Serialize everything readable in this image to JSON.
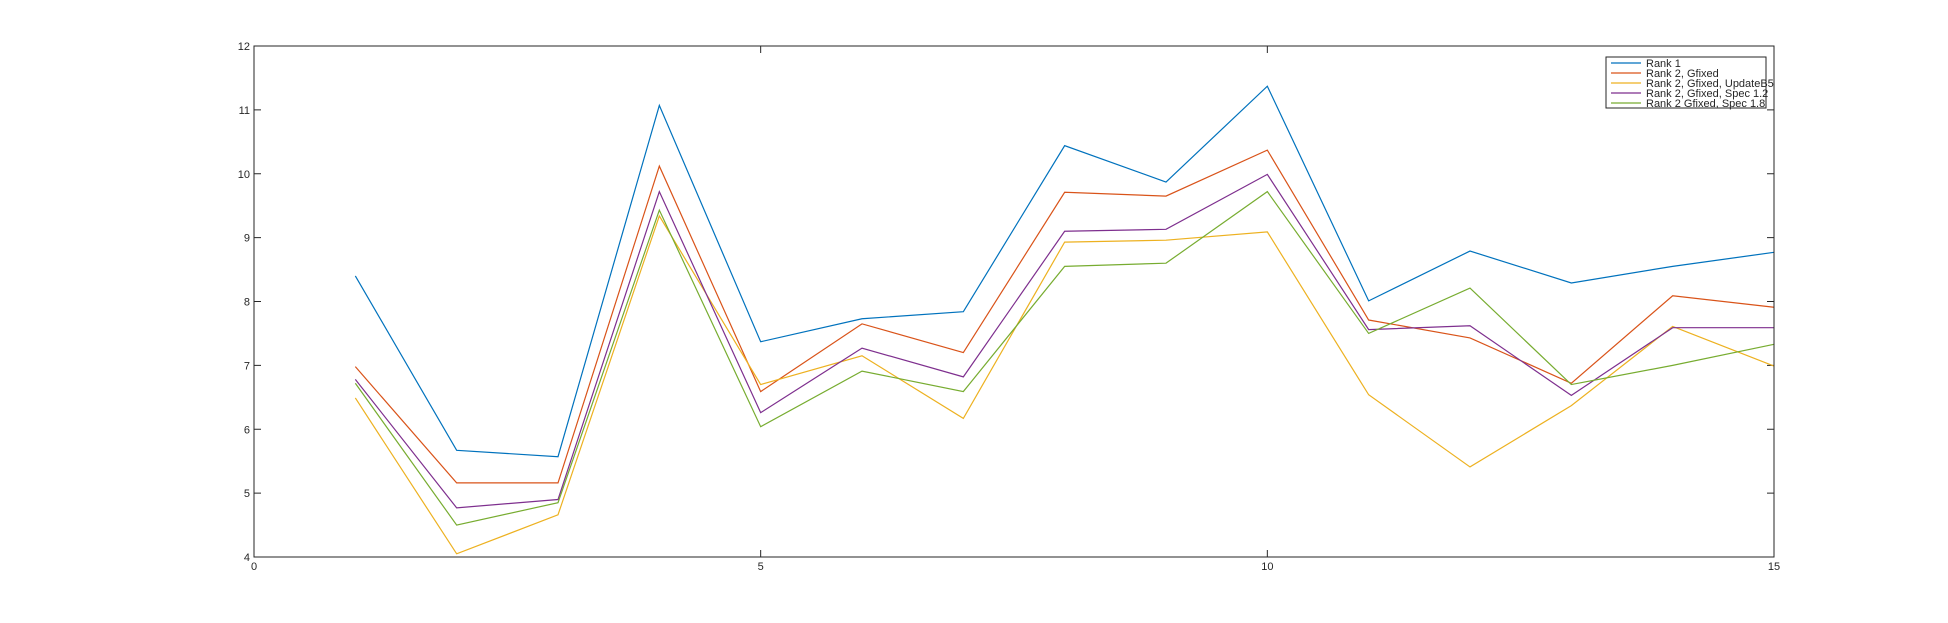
{
  "chart_data": {
    "type": "line",
    "title": "",
    "xlabel": "",
    "ylabel": "",
    "xlim": [
      0,
      15
    ],
    "ylim": [
      4,
      12
    ],
    "xticks": [
      0,
      5,
      10,
      15
    ],
    "yticks": [
      4,
      5,
      6,
      7,
      8,
      9,
      10,
      11,
      12
    ],
    "grid": false,
    "legend_position": "top-right",
    "x": [
      1,
      2,
      3,
      4,
      5,
      6,
      7,
      8,
      9,
      10,
      11,
      12,
      13,
      14,
      15
    ],
    "series": [
      {
        "name": "Rank 1",
        "color": "#0072bd",
        "values": [
          8.4,
          5.67,
          5.57,
          11.07,
          7.37,
          7.73,
          7.84,
          10.44,
          9.87,
          11.37,
          8.01,
          8.79,
          8.29,
          8.55,
          8.77
        ]
      },
      {
        "name": "Rank 2, Gfixed",
        "color": "#d95319",
        "values": [
          6.98,
          5.16,
          5.16,
          10.12,
          6.59,
          7.65,
          7.2,
          9.71,
          9.65,
          10.37,
          7.71,
          7.43,
          6.72,
          8.09,
          7.91
        ]
      },
      {
        "name": "Rank 2, Gfixed, UpdateB5",
        "color": "#edb120",
        "values": [
          6.49,
          4.05,
          4.66,
          9.34,
          6.7,
          7.15,
          6.17,
          8.93,
          8.96,
          9.09,
          6.54,
          5.41,
          6.37,
          7.61,
          6.99
        ]
      },
      {
        "name": "Rank 2, Gfixed, Spec 1.2",
        "color": "#7e2f8e",
        "values": [
          6.78,
          4.77,
          4.9,
          9.72,
          6.26,
          7.27,
          6.82,
          9.1,
          9.13,
          9.99,
          7.56,
          7.62,
          6.53,
          7.59,
          7.59
        ]
      },
      {
        "name": "Rank 2 Gfixed, Spec 1.8",
        "color": "#77ac30",
        "values": [
          6.72,
          4.5,
          4.85,
          9.43,
          6.04,
          6.91,
          6.59,
          8.55,
          8.6,
          9.72,
          7.5,
          8.21,
          6.7,
          7.0,
          7.33
        ]
      }
    ]
  }
}
